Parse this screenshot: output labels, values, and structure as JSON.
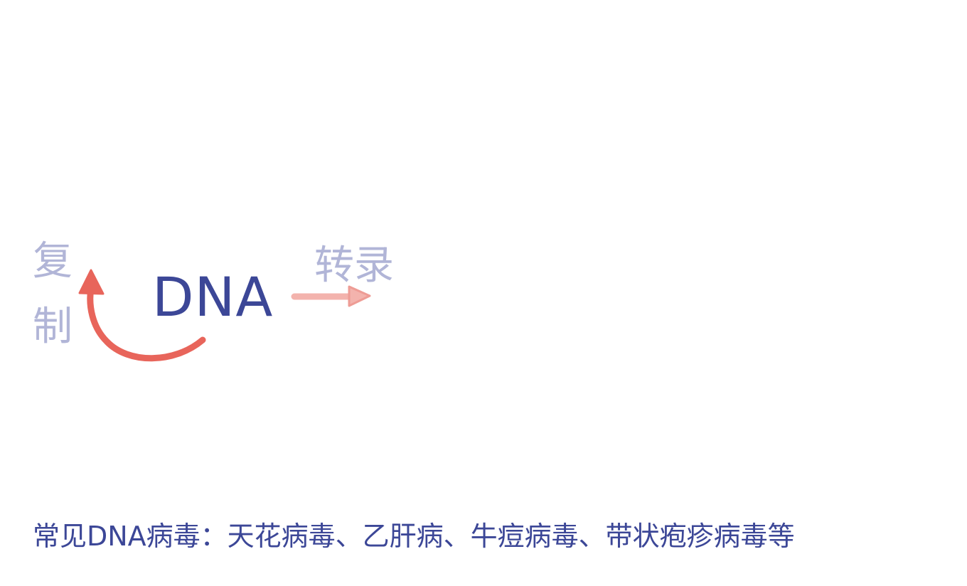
{
  "diagram": {
    "replicate_label_1": "复",
    "replicate_label_2": "制",
    "center_label": "DNA",
    "transcribe_label": "转录",
    "caption": "常见DNA病毒：天花病毒、乙肝病、牛痘病毒、带状疱疹病毒等"
  },
  "colors": {
    "primary_text": "#3c4797",
    "muted_text": "#b1b5d7",
    "replication_arrow": "#e8655b",
    "transcription_arrow": "#f3b3ad"
  }
}
